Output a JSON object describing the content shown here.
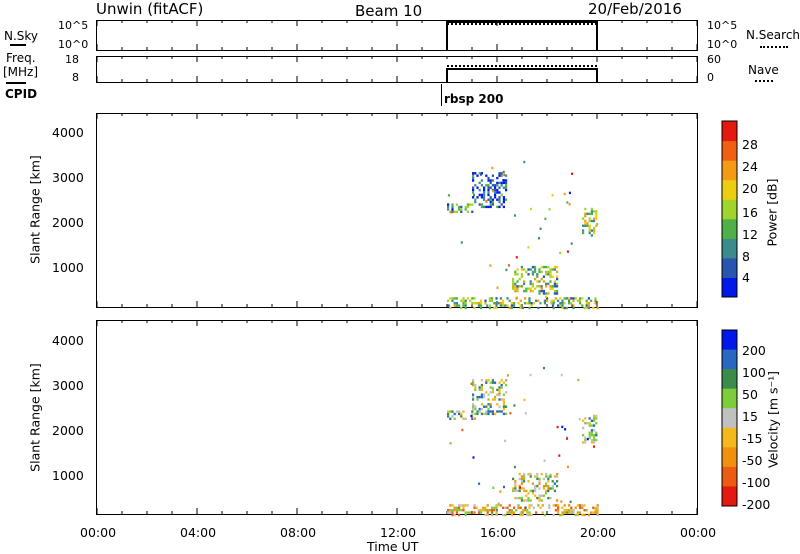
{
  "header": {
    "station": "Unwin (fitACF)",
    "beam": "Beam 10",
    "date": "20/Feb/2016"
  },
  "params": {
    "nsky_label": "N.Sky",
    "nsearch_label": "N.Search",
    "freq_label_1": "Freq.",
    "freq_label_2": "[MHz]",
    "nave_label": "Nave",
    "cpid_label": "CPID",
    "cpid_value": "rbsp 200",
    "nsky_ticks": [
      "10^5",
      "10^0"
    ],
    "nsearch_ticks": [
      "10^5",
      "10^0"
    ],
    "freq_ticks": [
      "18",
      "8"
    ],
    "nave_ticks": [
      "60",
      "0"
    ]
  },
  "chart_data": [
    {
      "type": "heatmap",
      "name": "power",
      "ylabel": "Slant Range [km]",
      "y_ticks": [
        "1000",
        "2000",
        "3000",
        "4000"
      ],
      "ylim": [
        180,
        4500
      ],
      "colorbar_label": "Power [dB]",
      "colorbar_ticks": [
        "4",
        "8",
        "12",
        "16",
        "20",
        "24",
        "28"
      ],
      "colorbar_colors": [
        "#0018e8",
        "#2855b0",
        "#3a8c8c",
        "#4fb048",
        "#9ed42c",
        "#ecce10",
        "#f49a14",
        "#f06010",
        "#e41a10"
      ],
      "regions": [
        {
          "t0": 14.0,
          "t1": 20.0,
          "r0": 180,
          "r1": 400,
          "level": 0.45
        },
        {
          "t0": 14.0,
          "t1": 15.0,
          "r0": 2300,
          "r1": 2500,
          "level": 0.3
        },
        {
          "t0": 15.0,
          "t1": 16.4,
          "r0": 2400,
          "r1": 3200,
          "level": 0.15
        },
        {
          "t0": 16.6,
          "t1": 18.4,
          "r0": 500,
          "r1": 1100,
          "level": 0.45
        },
        {
          "t0": 19.4,
          "t1": 20.0,
          "r0": 1800,
          "r1": 2400,
          "level": 0.5
        }
      ]
    },
    {
      "type": "heatmap",
      "name": "velocity",
      "ylabel": "Slant Range [km]",
      "y_ticks": [
        "1000",
        "2000",
        "3000",
        "4000"
      ],
      "ylim": [
        180,
        4500
      ],
      "colorbar_label": "Velocity [m s⁻¹]",
      "colorbar_ticks": [
        "200",
        "100",
        "50",
        "15",
        "-15",
        "-50",
        "-100",
        "-200"
      ],
      "colorbar_colors": [
        "#0018e8",
        "#2868c0",
        "#3a8c4c",
        "#7ccc3c",
        "#c0c0c0",
        "#f4b81c",
        "#f09010",
        "#ec5c10",
        "#e41a10"
      ],
      "regions": [
        {
          "t0": 14.0,
          "t1": 20.0,
          "r0": 180,
          "r1": 400,
          "level": 0.6
        },
        {
          "t0": 14.0,
          "t1": 15.0,
          "r0": 2300,
          "r1": 2500,
          "level": 0.4
        },
        {
          "t0": 15.0,
          "t1": 16.4,
          "r0": 2400,
          "r1": 3200,
          "level": 0.4
        },
        {
          "t0": 16.6,
          "t1": 18.4,
          "r0": 500,
          "r1": 1100,
          "level": 0.45
        },
        {
          "t0": 19.4,
          "t1": 20.0,
          "r0": 1800,
          "r1": 2400,
          "level": 0.4
        }
      ]
    }
  ],
  "time_axis": {
    "label": "Time UT",
    "ticks": [
      "00:00",
      "04:00",
      "08:00",
      "12:00",
      "16:00",
      "20:00",
      "00:00"
    ],
    "range_hours": [
      0,
      24
    ],
    "data_start_hour": 14.0,
    "data_end_hour": 20.0
  }
}
